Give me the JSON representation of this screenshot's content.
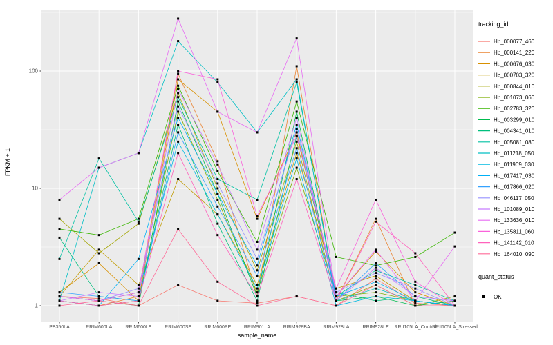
{
  "figure": {
    "y_axis_label": "FPKM + 1",
    "x_axis_label": "sample_name",
    "legend_color_title": "tracking_id",
    "legend_shape_title": "quant_status",
    "panel_bg": "#EBEBEB",
    "grid_color": "#FFFFFF",
    "tick_text_color": "#4D4D4D",
    "point_color": "#000000"
  },
  "chart_data": {
    "type": "line",
    "title": "",
    "xlabel": "sample_name",
    "ylabel": "FPKM + 1",
    "y_scale": "log10",
    "ylim": [
      0.73,
      350
    ],
    "y_breaks": [
      1,
      10,
      100
    ],
    "grid": true,
    "legend_position": "right",
    "quant_status_items": [
      "OK"
    ],
    "categories": [
      "PB350LA",
      "RRIM600LA",
      "RRIM600LE",
      "RRIM600SE",
      "RRIM600PE",
      "RRIM901LA",
      "RRIM928BA",
      "RRIM928LA",
      "RRIM928LE",
      "RRII105LA_Control",
      "RRII105LA_Stressed"
    ],
    "series": [
      {
        "name": "Hb_000077_460",
        "color": "#F8766D",
        "values": [
          1.2,
          1.15,
          1.0,
          1.5,
          1.1,
          1.05,
          1.2,
          1.0,
          1.7,
          1.05,
          1.0
        ]
      },
      {
        "name": "Hb_000141_220",
        "color": "#EA8331",
        "values": [
          1.1,
          1.0,
          1.2,
          95,
          17,
          1.2,
          110,
          1.1,
          5.5,
          1.0,
          1.1
        ]
      },
      {
        "name": "Hb_000676_030",
        "color": "#D89000",
        "values": [
          1.3,
          2.3,
          1.1,
          85,
          45,
          5.5,
          30,
          1.2,
          2.9,
          1.3,
          1.0
        ]
      },
      {
        "name": "Hb_000703_320",
        "color": "#C09B00",
        "values": [
          1.2,
          3.0,
          1.5,
          12,
          6.0,
          1.5,
          20,
          1.4,
          1.8,
          1.1,
          1.0
        ]
      },
      {
        "name": "Hb_000844_010",
        "color": "#A3A500",
        "values": [
          5.5,
          2.8,
          5.0,
          65,
          10,
          2.0,
          25,
          1.1,
          1.5,
          1.0,
          1.2
        ]
      },
      {
        "name": "Hb_001073_060",
        "color": "#7CAE00",
        "values": [
          1.1,
          1.0,
          1.1,
          45,
          8.0,
          1.3,
          15,
          1.2,
          1.3,
          1.1,
          1.0
        ]
      },
      {
        "name": "Hb_002783_320",
        "color": "#39B600",
        "values": [
          4.5,
          4.0,
          5.5,
          75,
          14,
          3.5,
          55,
          2.6,
          2.2,
          2.6,
          4.2
        ]
      },
      {
        "name": "Hb_003299_010",
        "color": "#00BB4E",
        "values": [
          1.2,
          1.1,
          1.0,
          55,
          9.0,
          1.2,
          45,
          1.1,
          1.2,
          1.0,
          1.1
        ]
      },
      {
        "name": "Hb_004341_010",
        "color": "#00BF7D",
        "values": [
          3.8,
          1.2,
          1.1,
          35,
          5.0,
          1.1,
          28,
          1.3,
          1.1,
          1.2,
          1.0
        ]
      },
      {
        "name": "Hb_005081_080",
        "color": "#00C1A3",
        "values": [
          2.5,
          18,
          5.2,
          60,
          12,
          8.0,
          80,
          1.2,
          2.0,
          1.5,
          1.1
        ]
      },
      {
        "name": "Hb_011218_050",
        "color": "#00BFC4",
        "values": [
          1.1,
          15,
          20,
          180,
          80,
          30,
          85,
          1.1,
          1.4,
          1.1,
          1.0
        ]
      },
      {
        "name": "Hb_011909_030",
        "color": "#00BAE0",
        "values": [
          1.2,
          1.1,
          1.3,
          25,
          6.0,
          1.4,
          18,
          1.0,
          1.2,
          1.1,
          1.0
        ]
      },
      {
        "name": "Hb_017417_030",
        "color": "#00B0F6",
        "values": [
          1.1,
          1.0,
          2.5,
          40,
          9.0,
          2.2,
          35,
          1.2,
          1.6,
          1.1,
          1.0
        ]
      },
      {
        "name": "Hb_017866_020",
        "color": "#35A2FF",
        "values": [
          1.3,
          1.2,
          1.1,
          30,
          7.0,
          1.8,
          22,
          1.1,
          2.3,
          1.2,
          1.1
        ]
      },
      {
        "name": "Hb_046117_050",
        "color": "#9590FF",
        "values": [
          1.2,
          1.1,
          1.4,
          50,
          11,
          2.5,
          32,
          1.3,
          1.9,
          1.4,
          1.0
        ]
      },
      {
        "name": "Hb_101089_010",
        "color": "#C77CFF",
        "values": [
          1.1,
          1.3,
          1.2,
          70,
          16,
          3.0,
          40,
          1.1,
          2.1,
          1.2,
          1.1
        ]
      },
      {
        "name": "Hb_133636_010",
        "color": "#E76BF3",
        "values": [
          8.0,
          15,
          20,
          280,
          45,
          30,
          190,
          1.2,
          3.0,
          1.1,
          3.2
        ]
      },
      {
        "name": "Hb_135811_060",
        "color": "#FA62DB",
        "values": [
          1.2,
          1.1,
          1.3,
          100,
          85,
          5.8,
          28,
          1.4,
          8.0,
          1.6,
          1.0
        ]
      },
      {
        "name": "Hb_141142_010",
        "color": "#FF62BC",
        "values": [
          1.1,
          1.0,
          1.1,
          20,
          4.0,
          1.2,
          12,
          1.1,
          5.2,
          2.8,
          1.0
        ]
      },
      {
        "name": "Hb_164010_090",
        "color": "#FF6A98",
        "values": [
          1.0,
          1.1,
          1.0,
          4.5,
          1.6,
          1.0,
          1.2,
          1.0,
          1.5,
          1.0,
          1.0
        ]
      }
    ]
  }
}
